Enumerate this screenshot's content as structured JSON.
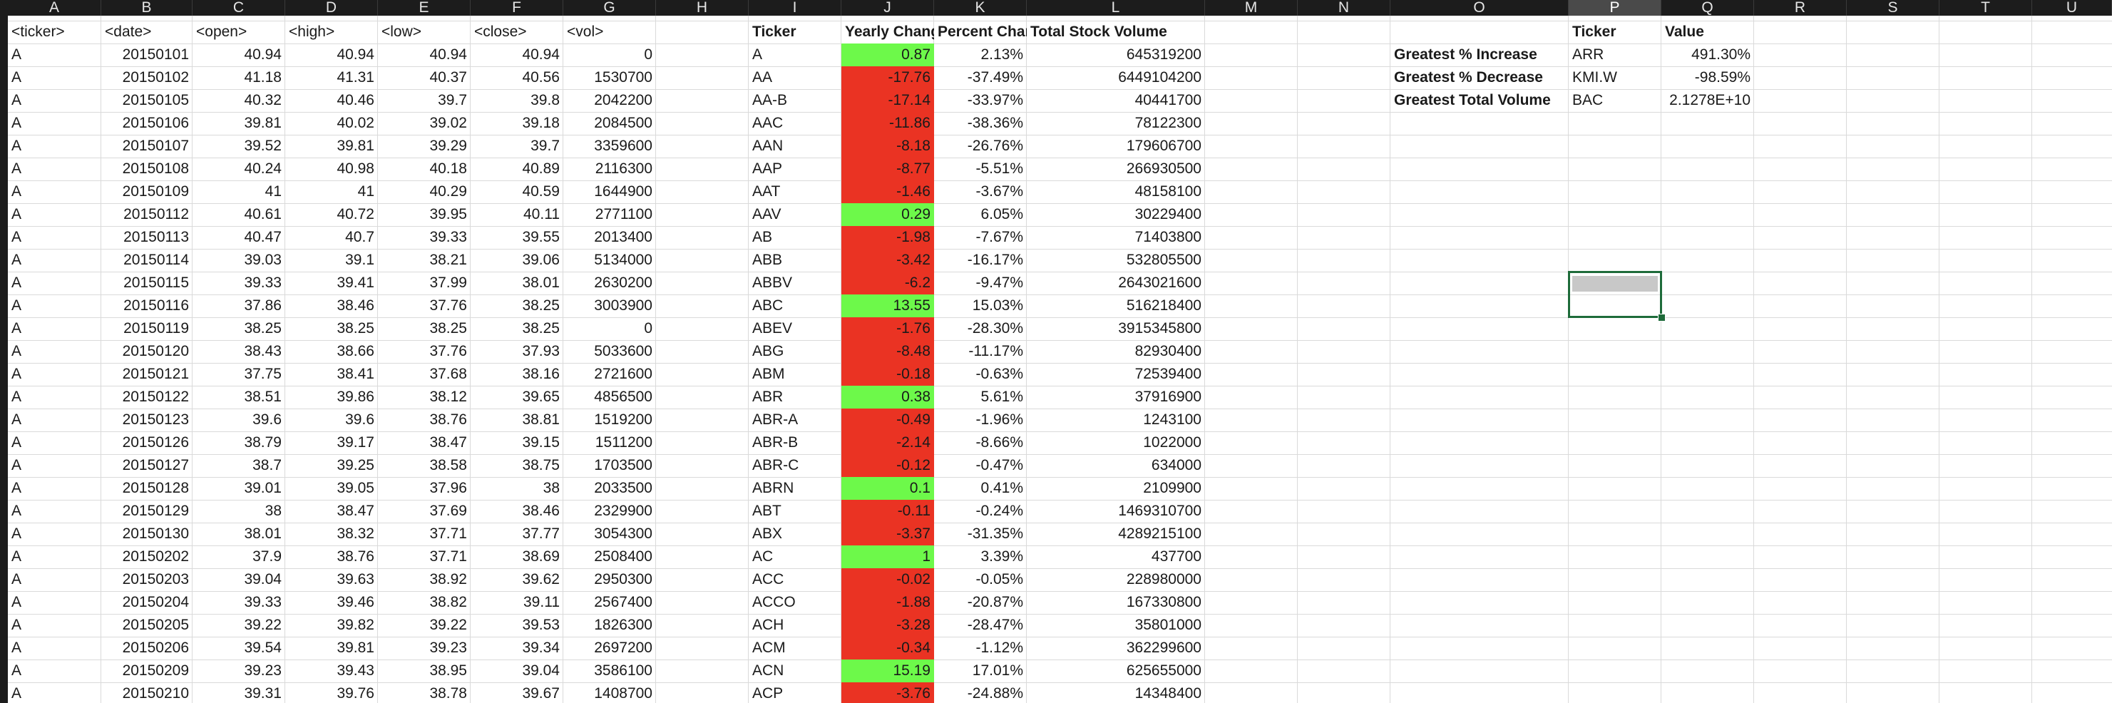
{
  "columns": [
    "A",
    "B",
    "C",
    "D",
    "E",
    "F",
    "G",
    "H",
    "I",
    "J",
    "K",
    "L",
    "M",
    "N",
    "O",
    "P",
    "Q",
    "R",
    "S",
    "T",
    "U"
  ],
  "selected_column": "P",
  "headers": {
    "raw": [
      "<ticker>",
      "<date>",
      "<open>",
      "<high>",
      "<low>",
      "<close>",
      "<vol>"
    ],
    "summary": [
      "Ticker",
      "Yearly Chang",
      "Percent Char",
      "Total Stock Volume"
    ],
    "greatest": [
      "Ticker",
      "Value"
    ]
  },
  "raw_rows": [
    [
      "A",
      "20150101",
      "40.94",
      "40.94",
      "40.94",
      "40.94",
      "0"
    ],
    [
      "A",
      "20150102",
      "41.18",
      "41.31",
      "40.37",
      "40.56",
      "1530700"
    ],
    [
      "A",
      "20150105",
      "40.32",
      "40.46",
      "39.7",
      "39.8",
      "2042200"
    ],
    [
      "A",
      "20150106",
      "39.81",
      "40.02",
      "39.02",
      "39.18",
      "2084500"
    ],
    [
      "A",
      "20150107",
      "39.52",
      "39.81",
      "39.29",
      "39.7",
      "3359600"
    ],
    [
      "A",
      "20150108",
      "40.24",
      "40.98",
      "40.18",
      "40.89",
      "2116300"
    ],
    [
      "A",
      "20150109",
      "41",
      "41",
      "40.29",
      "40.59",
      "1644900"
    ],
    [
      "A",
      "20150112",
      "40.61",
      "40.72",
      "39.95",
      "40.11",
      "2771100"
    ],
    [
      "A",
      "20150113",
      "40.47",
      "40.7",
      "39.33",
      "39.55",
      "2013400"
    ],
    [
      "A",
      "20150114",
      "39.03",
      "39.1",
      "38.21",
      "39.06",
      "5134000"
    ],
    [
      "A",
      "20150115",
      "39.33",
      "39.41",
      "37.99",
      "38.01",
      "2630200"
    ],
    [
      "A",
      "20150116",
      "37.86",
      "38.46",
      "37.76",
      "38.25",
      "3003900"
    ],
    [
      "A",
      "20150119",
      "38.25",
      "38.25",
      "38.25",
      "38.25",
      "0"
    ],
    [
      "A",
      "20150120",
      "38.43",
      "38.66",
      "37.76",
      "37.93",
      "5033600"
    ],
    [
      "A",
      "20150121",
      "37.75",
      "38.41",
      "37.68",
      "38.16",
      "2721600"
    ],
    [
      "A",
      "20150122",
      "38.51",
      "39.86",
      "38.12",
      "39.65",
      "4856500"
    ],
    [
      "A",
      "20150123",
      "39.6",
      "39.6",
      "38.76",
      "38.81",
      "1519200"
    ],
    [
      "A",
      "20150126",
      "38.79",
      "39.17",
      "38.47",
      "39.15",
      "1511200"
    ],
    [
      "A",
      "20150127",
      "38.7",
      "39.25",
      "38.58",
      "38.75",
      "1703500"
    ],
    [
      "A",
      "20150128",
      "39.01",
      "39.05",
      "37.96",
      "38",
      "2033500"
    ],
    [
      "A",
      "20150129",
      "38",
      "38.47",
      "37.69",
      "38.46",
      "2329900"
    ],
    [
      "A",
      "20150130",
      "38.01",
      "38.32",
      "37.71",
      "37.77",
      "3054300"
    ],
    [
      "A",
      "20150202",
      "37.9",
      "38.76",
      "37.71",
      "38.69",
      "2508400"
    ],
    [
      "A",
      "20150203",
      "39.04",
      "39.63",
      "38.92",
      "39.62",
      "2950300"
    ],
    [
      "A",
      "20150204",
      "39.33",
      "39.46",
      "38.82",
      "39.11",
      "2567400"
    ],
    [
      "A",
      "20150205",
      "39.22",
      "39.82",
      "39.22",
      "39.53",
      "1826300"
    ],
    [
      "A",
      "20150206",
      "39.54",
      "39.81",
      "39.23",
      "39.34",
      "2697200"
    ],
    [
      "A",
      "20150209",
      "39.23",
      "39.43",
      "38.95",
      "39.04",
      "3586100"
    ],
    [
      "A",
      "20150210",
      "39.31",
      "39.76",
      "38.78",
      "39.67",
      "1408700"
    ]
  ],
  "summary_rows": [
    {
      "ticker": "A",
      "change": "0.87",
      "pct": "2.13%",
      "vol": "645319200",
      "sign": "pos"
    },
    {
      "ticker": "AA",
      "change": "-17.76",
      "pct": "-37.49%",
      "vol": "6449104200",
      "sign": "neg"
    },
    {
      "ticker": "AA-B",
      "change": "-17.14",
      "pct": "-33.97%",
      "vol": "40441700",
      "sign": "neg"
    },
    {
      "ticker": "AAC",
      "change": "-11.86",
      "pct": "-38.36%",
      "vol": "78122300",
      "sign": "neg"
    },
    {
      "ticker": "AAN",
      "change": "-8.18",
      "pct": "-26.76%",
      "vol": "179606700",
      "sign": "neg"
    },
    {
      "ticker": "AAP",
      "change": "-8.77",
      "pct": "-5.51%",
      "vol": "266930500",
      "sign": "neg"
    },
    {
      "ticker": "AAT",
      "change": "-1.46",
      "pct": "-3.67%",
      "vol": "48158100",
      "sign": "neg"
    },
    {
      "ticker": "AAV",
      "change": "0.29",
      "pct": "6.05%",
      "vol": "30229400",
      "sign": "pos"
    },
    {
      "ticker": "AB",
      "change": "-1.98",
      "pct": "-7.67%",
      "vol": "71403800",
      "sign": "neg"
    },
    {
      "ticker": "ABB",
      "change": "-3.42",
      "pct": "-16.17%",
      "vol": "532805500",
      "sign": "neg"
    },
    {
      "ticker": "ABBV",
      "change": "-6.2",
      "pct": "-9.47%",
      "vol": "2643021600",
      "sign": "neg"
    },
    {
      "ticker": "ABC",
      "change": "13.55",
      "pct": "15.03%",
      "vol": "516218400",
      "sign": "pos"
    },
    {
      "ticker": "ABEV",
      "change": "-1.76",
      "pct": "-28.30%",
      "vol": "3915345800",
      "sign": "neg"
    },
    {
      "ticker": "ABG",
      "change": "-8.48",
      "pct": "-11.17%",
      "vol": "82930400",
      "sign": "neg"
    },
    {
      "ticker": "ABM",
      "change": "-0.18",
      "pct": "-0.63%",
      "vol": "72539400",
      "sign": "neg"
    },
    {
      "ticker": "ABR",
      "change": "0.38",
      "pct": "5.61%",
      "vol": "37916900",
      "sign": "pos"
    },
    {
      "ticker": "ABR-A",
      "change": "-0.49",
      "pct": "-1.96%",
      "vol": "1243100",
      "sign": "neg"
    },
    {
      "ticker": "ABR-B",
      "change": "-2.14",
      "pct": "-8.66%",
      "vol": "1022000",
      "sign": "neg"
    },
    {
      "ticker": "ABR-C",
      "change": "-0.12",
      "pct": "-0.47%",
      "vol": "634000",
      "sign": "neg"
    },
    {
      "ticker": "ABRN",
      "change": "0.1",
      "pct": "0.41%",
      "vol": "2109900",
      "sign": "pos"
    },
    {
      "ticker": "ABT",
      "change": "-0.11",
      "pct": "-0.24%",
      "vol": "1469310700",
      "sign": "neg"
    },
    {
      "ticker": "ABX",
      "change": "-3.37",
      "pct": "-31.35%",
      "vol": "4289215100",
      "sign": "neg"
    },
    {
      "ticker": "AC",
      "change": "1",
      "pct": "3.39%",
      "vol": "437700",
      "sign": "pos"
    },
    {
      "ticker": "ACC",
      "change": "-0.02",
      "pct": "-0.05%",
      "vol": "228980000",
      "sign": "neg"
    },
    {
      "ticker": "ACCO",
      "change": "-1.88",
      "pct": "-20.87%",
      "vol": "167330800",
      "sign": "neg"
    },
    {
      "ticker": "ACH",
      "change": "-3.28",
      "pct": "-28.47%",
      "vol": "35801000",
      "sign": "neg"
    },
    {
      "ticker": "ACM",
      "change": "-0.34",
      "pct": "-1.12%",
      "vol": "362299600",
      "sign": "neg"
    },
    {
      "ticker": "ACN",
      "change": "15.19",
      "pct": "17.01%",
      "vol": "625655000",
      "sign": "pos"
    },
    {
      "ticker": "ACP",
      "change": "-3.76",
      "pct": "-24.88%",
      "vol": "14348400",
      "sign": "neg"
    }
  ],
  "greatest_rows": [
    {
      "label": "Greatest % Increase",
      "ticker": "ARR",
      "value": "491.30%"
    },
    {
      "label": "Greatest % Decrease",
      "ticker": "KMI.W",
      "value": "-98.59%"
    },
    {
      "label": "Greatest Total Volume",
      "ticker": "BAC",
      "value": "2.1278E+10"
    }
  ],
  "colors": {
    "positive_fill": "#6df94a",
    "negative_fill": "#ea3323",
    "selection_border": "#1e6b3a",
    "header_bg": "#1c1c1c"
  }
}
